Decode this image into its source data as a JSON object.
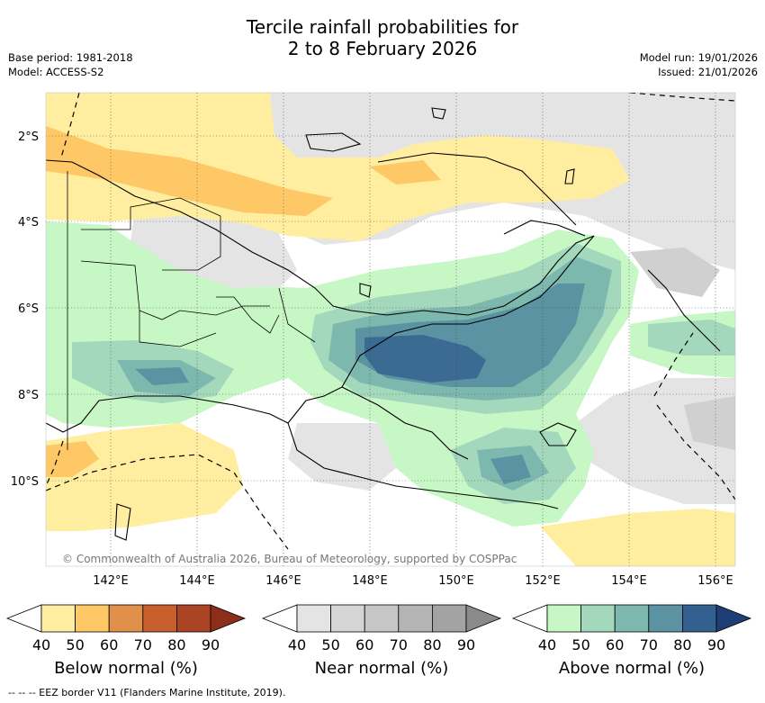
{
  "header": {
    "title_line1": "Tercile rainfall probabilities for",
    "title_line2": "2 to 8 February 2026",
    "base_period": "Base period: 1981-2018",
    "model": "Model: ACCESS-S2",
    "model_run": "Model run: 19/01/2026",
    "issued": "Issued: 21/01/2026"
  },
  "map": {
    "copyright": "© Commonwealth of Australia 2026, Bureau of Meteorology, supported by COSPPac",
    "lat_labels": [
      "2°S",
      "4°S",
      "6°S",
      "8°S",
      "10°S"
    ],
    "lon_labels": [
      "142°E",
      "144°E",
      "146°E",
      "148°E",
      "150°E",
      "152°E",
      "154°E",
      "156°E"
    ]
  },
  "legends": [
    {
      "title": "Below normal (%)",
      "ticks": [
        "40",
        "50",
        "60",
        "70",
        "80",
        "90"
      ],
      "colors": [
        "#ffeea0",
        "#fdc865",
        "#e0904a",
        "#c8602e",
        "#ab4424",
        "#8b2f1b"
      ]
    },
    {
      "title": "Near normal (%)",
      "ticks": [
        "40",
        "50",
        "60",
        "70",
        "80",
        "90"
      ],
      "colors": [
        "#e4e4e4",
        "#d5d5d5",
        "#c6c6c6",
        "#b4b4b4",
        "#a3a3a3",
        "#8a8a8a"
      ]
    },
    {
      "title": "Above normal (%)",
      "ticks": [
        "40",
        "50",
        "60",
        "70",
        "80",
        "90"
      ],
      "colors": [
        "#c8f7c6",
        "#a4d8bc",
        "#7db8ae",
        "#5b93a2",
        "#33608f",
        "#1e3f76"
      ]
    }
  ],
  "footer": {
    "eez_note": "--  --  -- EEZ border V11 (Flanders Marine Institute, 2019)."
  }
}
